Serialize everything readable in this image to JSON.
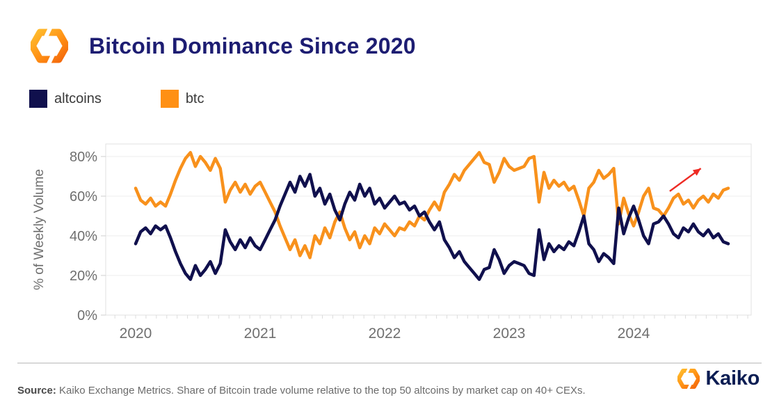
{
  "header": {
    "title": "Bitcoin Dominance Since 2020"
  },
  "icons": {
    "header_logo": "kaiko-hexagon-mark",
    "footer_logo": "kaiko-hexagon-mark"
  },
  "legend": [
    {
      "label": "altcoins",
      "color": "#10104D"
    },
    {
      "label": "btc",
      "color": "#FF9014"
    }
  ],
  "footer": {
    "source_label": "Source:",
    "source_text": " Kaiko Exchange Metrics. Share of Bitcoin trade volume relative to the top 50 altcoins by market cap on 40+ CEXs.",
    "brand": "Kaiko"
  },
  "colors": {
    "title": "#1d1d72",
    "altcoins_line": "#10104D",
    "btc_line": "#F8911C",
    "axis_text": "#6f6f6f",
    "grid": "#ededed",
    "plot_border": "#e0e0e0",
    "annotation_arrow": "#EE2B24",
    "brand_navy": "#0c1d53",
    "brand_orange": "#FF9014"
  },
  "chart_data": {
    "type": "line",
    "title": "Bitcoin Dominance Since 2020",
    "xlabel": "",
    "ylabel": "% of Weekly Volume",
    "grid": true,
    "legend_position": "top-left-above-plot",
    "xlim": [
      2019.76,
      2024.95
    ],
    "ylim": [
      0,
      86
    ],
    "x_tick_values": [
      2020,
      2021,
      2022,
      2023,
      2024
    ],
    "x_tick_labels": [
      "2020",
      "2021",
      "2022",
      "2023",
      "2024"
    ],
    "y_tick_values": [
      0,
      20,
      40,
      60,
      80
    ],
    "y_tick_labels": [
      "0%",
      "20%",
      "40%",
      "60%",
      "80%"
    ],
    "x_start": 2020.0,
    "x_step": 0.04,
    "annotation": {
      "type": "arrow",
      "from_x": 2024.29,
      "from_y": 62.5,
      "to_x": 2024.54,
      "to_y": 74,
      "color": "#EE2B24"
    },
    "series": [
      {
        "name": "btc",
        "color": "#F8911C",
        "values": [
          64,
          58,
          56,
          59,
          55,
          57,
          55,
          61,
          68,
          74,
          79,
          82,
          75,
          80,
          77,
          73,
          79,
          74,
          57,
          63,
          67,
          62,
          66,
          61,
          65,
          67,
          62,
          57,
          52,
          45,
          39,
          33,
          38,
          30,
          35,
          29,
          40,
          36,
          44,
          39,
          47,
          52,
          44,
          38,
          42,
          34,
          40,
          36,
          44,
          41,
          46,
          43,
          40,
          44,
          43,
          47,
          45,
          50,
          48,
          53,
          57,
          53,
          62,
          66,
          71,
          68,
          73,
          76,
          79,
          82,
          77,
          76,
          67,
          72,
          79,
          75,
          73,
          74,
          75,
          79,
          80,
          57,
          72,
          64,
          68,
          65,
          67,
          63,
          65,
          58,
          50,
          64,
          67,
          73,
          69,
          71,
          74,
          46,
          59,
          51,
          45,
          52,
          60,
          64,
          54,
          53,
          50,
          54,
          59,
          61,
          56,
          58,
          54,
          58,
          60,
          57,
          61,
          59,
          63,
          64
        ]
      },
      {
        "name": "altcoins",
        "color": "#10104D",
        "values": [
          36,
          42,
          44,
          41,
          45,
          43,
          45,
          39,
          32,
          26,
          21,
          18,
          25,
          20,
          23,
          27,
          21,
          26,
          43,
          37,
          33,
          38,
          34,
          39,
          35,
          33,
          38,
          43,
          48,
          55,
          61,
          67,
          62,
          70,
          65,
          71,
          60,
          64,
          56,
          61,
          53,
          48,
          56,
          62,
          58,
          66,
          60,
          64,
          56,
          59,
          54,
          57,
          60,
          56,
          57,
          53,
          55,
          50,
          52,
          47,
          43,
          47,
          38,
          34,
          29,
          32,
          27,
          24,
          21,
          18,
          23,
          24,
          33,
          28,
          21,
          25,
          27,
          26,
          25,
          21,
          20,
          43,
          28,
          36,
          32,
          35,
          33,
          37,
          35,
          42,
          50,
          36,
          33,
          27,
          31,
          29,
          26,
          54,
          41,
          49,
          55,
          48,
          40,
          36,
          46,
          47,
          50,
          46,
          41,
          39,
          44,
          42,
          46,
          42,
          40,
          43,
          39,
          41,
          37,
          36
        ]
      }
    ]
  }
}
